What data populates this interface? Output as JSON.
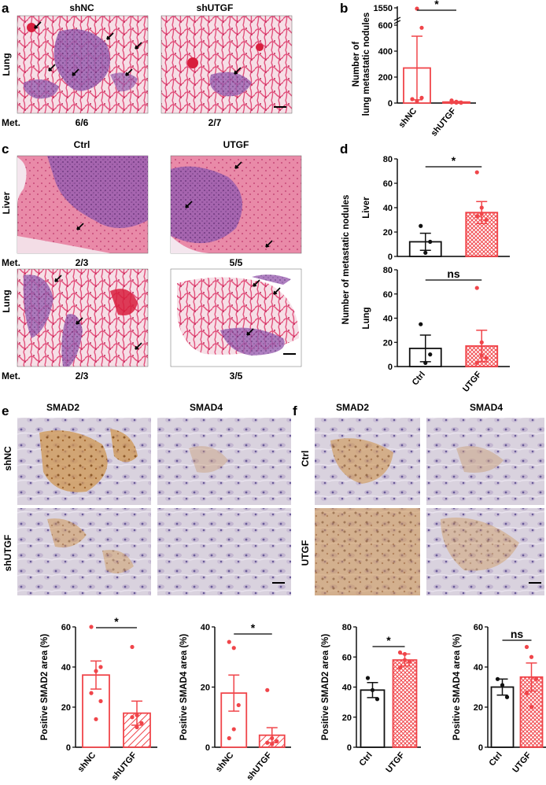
{
  "figure": {
    "panel_labels": [
      "a",
      "b",
      "c",
      "d",
      "e",
      "f"
    ],
    "a": {
      "columns": [
        "shNC",
        "shUTGF"
      ],
      "row_label": "Lung",
      "met_label": "Met.",
      "met_values": [
        "6/6",
        "2/7"
      ]
    },
    "c": {
      "columns": [
        "Ctrl",
        "UTGF"
      ],
      "rows": [
        "Liver",
        "Lung"
      ],
      "met_label": "Met.",
      "met_values": [
        [
          "2/3",
          "5/5"
        ],
        [
          "2/3",
          "3/5"
        ]
      ]
    },
    "e": {
      "columns": [
        "SMAD2",
        "SMAD4"
      ],
      "rows": [
        "shNC",
        "shUTGF"
      ]
    },
    "f": {
      "columns": [
        "SMAD2",
        "SMAD4"
      ],
      "rows": [
        "Ctrl",
        "UTGF"
      ]
    }
  },
  "colors": {
    "red": "#f0454a",
    "black": "#111111",
    "tissue_pink": "#e24a73",
    "tissue_purple": "#7a3f9a",
    "ihc_background": "#d6cfdc",
    "ihc_brown": "#c9924a"
  },
  "chart_data": [
    {
      "id": "b",
      "type": "bar",
      "categories": [
        "shNC",
        "shUTGF"
      ],
      "ylabel": "Number of\nlung metastatic nodules",
      "yticks": [
        0,
        200,
        400,
        600,
        1550
      ],
      "axis_break": true,
      "ylim": [
        0,
        600
      ],
      "values": [
        270,
        8
      ],
      "errors": [
        245,
        4
      ],
      "points": [
        [
          30,
          15,
          40,
          30,
          1550,
          580
        ],
        [
          5,
          10,
          2,
          20,
          3,
          5,
          8
        ]
      ],
      "hatch": [
        null,
        "diagonal"
      ],
      "colors": [
        "#f0454a",
        "#f0454a"
      ],
      "significance": "*"
    },
    {
      "id": "d-liver",
      "type": "bar",
      "categories": [
        "Ctrl",
        "UTGF"
      ],
      "ylabel": "Liver",
      "yticks": [
        0,
        20,
        40,
        60,
        80
      ],
      "ylim": [
        0,
        80
      ],
      "values": [
        12,
        36
      ],
      "errors": [
        7,
        9
      ],
      "points": [
        [
          25,
          3,
          12
        ],
        [
          69,
          35,
          30,
          33,
          40
        ]
      ],
      "hatch": [
        null,
        "crosshatch"
      ],
      "colors": [
        "#111111",
        "#f0454a"
      ],
      "significance": "*"
    },
    {
      "id": "d-lung",
      "type": "bar",
      "categories": [
        "Ctrl",
        "UTGF"
      ],
      "ylabel": "Lung",
      "shared_ylabel": "Number of metastatic nodules",
      "yticks": [
        0,
        20,
        40,
        60,
        80
      ],
      "ylim": [
        0,
        80
      ],
      "values": [
        15,
        17
      ],
      "errors": [
        11,
        13
      ],
      "points": [
        [
          35,
          3,
          10
        ],
        [
          65,
          20,
          7,
          3,
          9
        ]
      ],
      "hatch": [
        null,
        "crosshatch"
      ],
      "colors": [
        "#111111",
        "#f0454a"
      ],
      "significance": "ns"
    },
    {
      "id": "e-smad2",
      "type": "bar",
      "categories": [
        "shNC",
        "shUTGF"
      ],
      "ylabel": "Positive SMAD2 area (%)",
      "yticks": [
        0,
        20,
        40,
        60
      ],
      "ylim": [
        0,
        60
      ],
      "values": [
        36,
        17
      ],
      "errors": [
        7,
        6
      ],
      "points": [
        [
          60,
          38,
          40,
          27,
          14,
          23
        ],
        [
          50,
          16,
          12,
          15,
          10
        ]
      ],
      "hatch": [
        null,
        "diagonal"
      ],
      "colors": [
        "#f0454a",
        "#f0454a"
      ],
      "significance": "*"
    },
    {
      "id": "e-smad4",
      "type": "bar",
      "categories": [
        "shNC",
        "shUTGF"
      ],
      "ylabel": "Positive SMAD4 area (%)",
      "yticks": [
        0,
        20,
        40
      ],
      "ylim": [
        0,
        40
      ],
      "values": [
        18,
        4
      ],
      "errors": [
        6,
        2.5
      ],
      "points": [
        [
          35,
          33,
          14,
          3,
          6
        ],
        [
          19,
          3,
          2,
          1.5,
          1
        ]
      ],
      "hatch": [
        null,
        "diagonal"
      ],
      "colors": [
        "#f0454a",
        "#f0454a"
      ],
      "significance": "*"
    },
    {
      "id": "f-smad2",
      "type": "bar",
      "categories": [
        "Ctrl",
        "UTGF"
      ],
      "ylabel": "Positive SMAD2 area (%)",
      "yticks": [
        0,
        20,
        40,
        60,
        80
      ],
      "ylim": [
        0,
        80
      ],
      "values": [
        38,
        58
      ],
      "errors": [
        5,
        4
      ],
      "points": [
        [
          46,
          38,
          32
        ],
        [
          63,
          62,
          57,
          53,
          58
        ]
      ],
      "hatch": [
        null,
        "crosshatch"
      ],
      "colors": [
        "#111111",
        "#f0454a"
      ],
      "significance": "*"
    },
    {
      "id": "f-smad4",
      "type": "bar",
      "categories": [
        "Ctrl",
        "UTGF"
      ],
      "ylabel": "Positive SMAD4 area (%)",
      "yticks": [
        0,
        20,
        40,
        60
      ],
      "ylim": [
        0,
        60
      ],
      "values": [
        30,
        35
      ],
      "errors": [
        4,
        7
      ],
      "points": [
        [
          34,
          31,
          25
        ],
        [
          50,
          45,
          34,
          27,
          20
        ]
      ],
      "hatch": [
        null,
        "crosshatch"
      ],
      "colors": [
        "#111111",
        "#f0454a"
      ],
      "significance": "ns"
    }
  ]
}
